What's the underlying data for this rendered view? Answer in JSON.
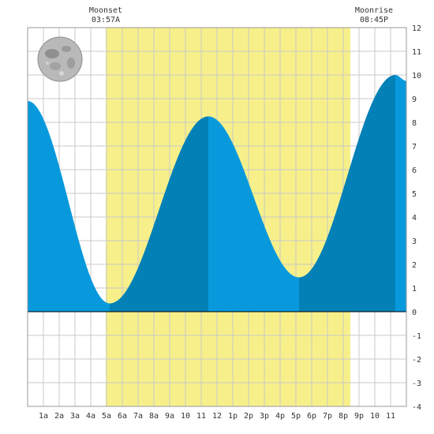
{
  "moon_events": {
    "moonset": {
      "label": "Moonset",
      "time": "03:57A"
    },
    "moonrise": {
      "label": "Moonrise",
      "time": "08:45P"
    }
  },
  "colors": {
    "daylight": "#f7f08a",
    "tide_light": "#0899dd",
    "tide_dark": "#0380b6",
    "grid": "#c8c8c8",
    "background": "#ffffff"
  },
  "icon": "full-moon-icon",
  "chart_data": {
    "type": "area",
    "title": "",
    "xlabel": "",
    "ylabel": "",
    "xlim": [
      0,
      24
    ],
    "ylim": [
      -4,
      12
    ],
    "x_tick_labels": [
      "1a",
      "2a",
      "3a",
      "4a",
      "5a",
      "6a",
      "7a",
      "8a",
      "9a",
      "10",
      "11",
      "12",
      "1p",
      "2p",
      "3p",
      "4p",
      "5p",
      "6p",
      "7p",
      "8p",
      "9p",
      "10",
      "11"
    ],
    "x_tick_positions": [
      1,
      2,
      3,
      4,
      5,
      6,
      7,
      8,
      9,
      10,
      11,
      12,
      13,
      14,
      15,
      16,
      17,
      18,
      19,
      20,
      21,
      22,
      23
    ],
    "y_ticks": [
      -4,
      -3,
      -2,
      -1,
      0,
      1,
      2,
      3,
      4,
      5,
      6,
      7,
      8,
      9,
      10,
      11,
      12
    ],
    "daylight": {
      "start": 4.95,
      "end": 20.45
    },
    "tide_extremes": [
      {
        "time": 0.0,
        "height": 8.9
      },
      {
        "time": 5.2,
        "height": 0.35
      },
      {
        "time": 11.45,
        "height": 8.25
      },
      {
        "time": 17.2,
        "height": 1.45
      },
      {
        "time": 23.3,
        "height": 10.0
      },
      {
        "time": 24.0,
        "height": 9.75
      }
    ],
    "grid": true
  }
}
